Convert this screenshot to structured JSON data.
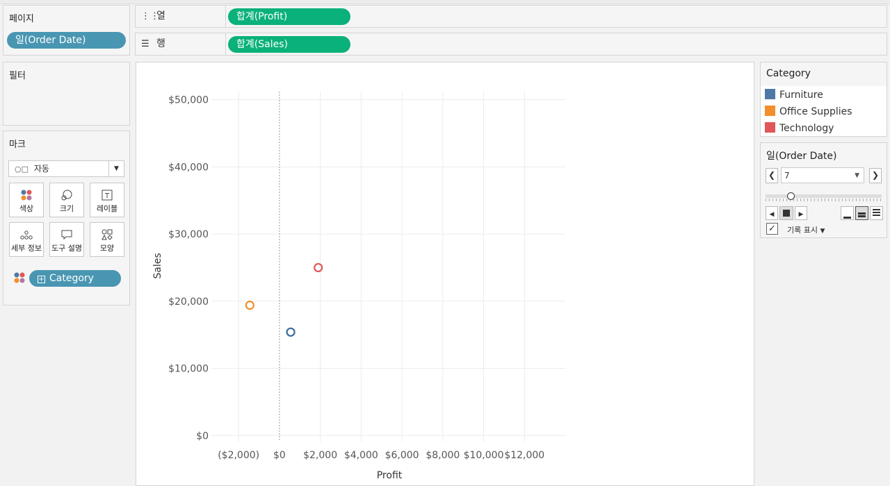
{
  "shelves": {
    "pages": {
      "title": "페이지",
      "pill": "일(Order Date)"
    },
    "columns": {
      "label": "열",
      "pill": "합계(Profit)"
    },
    "rows": {
      "label": "행",
      "pill": "합계(Sales)"
    },
    "filters": {
      "title": "필터"
    }
  },
  "marks": {
    "title": "마크",
    "type": "자동",
    "buttons": [
      "색상",
      "크기",
      "레이블",
      "세부 정보",
      "도구 설명",
      "모양"
    ],
    "field_pill": "Category"
  },
  "legend": {
    "title": "Category",
    "items": [
      {
        "label": "Furniture",
        "color": "#4e79a7"
      },
      {
        "label": "Office Supplies",
        "color": "#f28e2b"
      },
      {
        "label": "Technology",
        "color": "#e15759"
      }
    ]
  },
  "page_control": {
    "title": "일(Order Date)",
    "value": "7",
    "show_history_label": "기록 표시",
    "show_history_checked": true
  },
  "chart_data": {
    "type": "scatter",
    "xlabel": "Profit",
    "ylabel": "Sales",
    "x_ticks": [
      "($2,000)",
      "$0",
      "$2,000",
      "$4,000",
      "$6,000",
      "$8,000",
      "$10,000",
      "$12,000"
    ],
    "x_tick_values": [
      -2000,
      0,
      2000,
      4000,
      6000,
      8000,
      10000,
      12000
    ],
    "y_ticks": [
      "$0",
      "$10,000",
      "$20,000",
      "$30,000",
      "$40,000",
      "$50,000"
    ],
    "y_tick_values": [
      0,
      10000,
      20000,
      30000,
      40000,
      50000
    ],
    "xlim": [
      -3300,
      14000
    ],
    "ylim": [
      -900,
      51200
    ],
    "grid": true,
    "points": [
      {
        "category": "Furniture",
        "x": 550,
        "y": 15400,
        "color": "#3d6da0"
      },
      {
        "category": "Office Supplies",
        "x": -1450,
        "y": 19400,
        "color": "#f28e2b"
      },
      {
        "category": "Technology",
        "x": 1900,
        "y": 25000,
        "color": "#e15759"
      }
    ]
  }
}
